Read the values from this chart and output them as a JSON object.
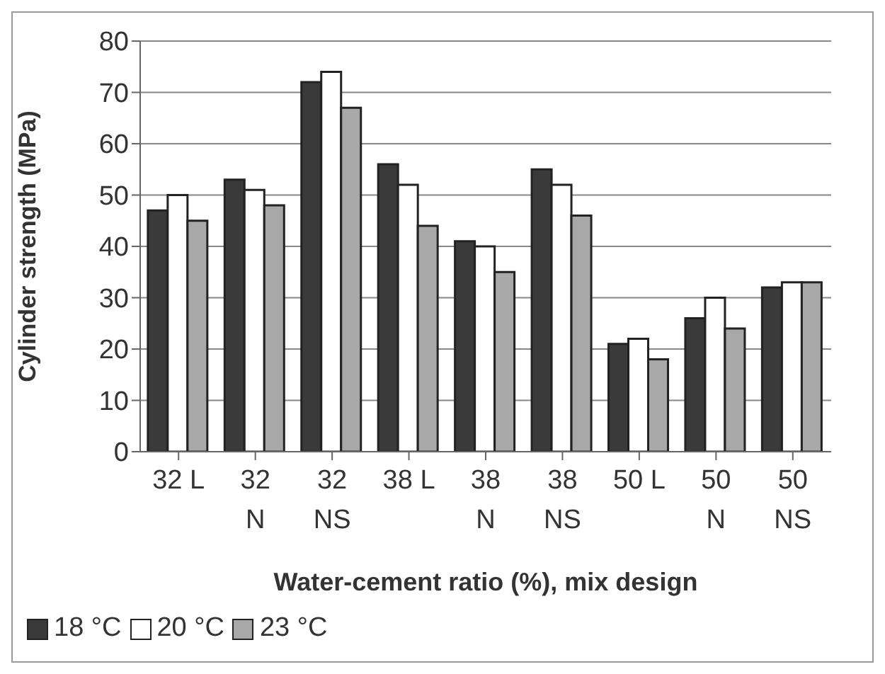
{
  "chart_data": {
    "type": "bar",
    "xlabel": "Water-cement ratio (%), mix design",
    "ylabel": "Cylinder strength (MPa)",
    "categories": [
      "32 L",
      "32\nN",
      "32\nNS",
      "38 L",
      "38\nN",
      "38\nNS",
      "50 L",
      "50\nN",
      "50\nNS"
    ],
    "series": [
      {
        "name": "18 °C",
        "color": "#3a3a3a",
        "values": [
          47,
          53,
          72,
          56,
          41,
          55,
          21,
          26,
          32
        ]
      },
      {
        "name": "20 °C",
        "color": "#ffffff",
        "values": [
          50,
          51,
          74,
          52,
          40,
          52,
          22,
          30,
          33
        ]
      },
      {
        "name": "23 °C",
        "color": "#a8a8a8",
        "values": [
          45,
          48,
          67,
          44,
          35,
          46,
          18,
          24,
          33
        ]
      }
    ],
    "ylim": [
      0,
      80
    ],
    "yticks": [
      0,
      10,
      20,
      30,
      40,
      50,
      60,
      70,
      80
    ],
    "grid": "y",
    "legend": "bottom left"
  }
}
